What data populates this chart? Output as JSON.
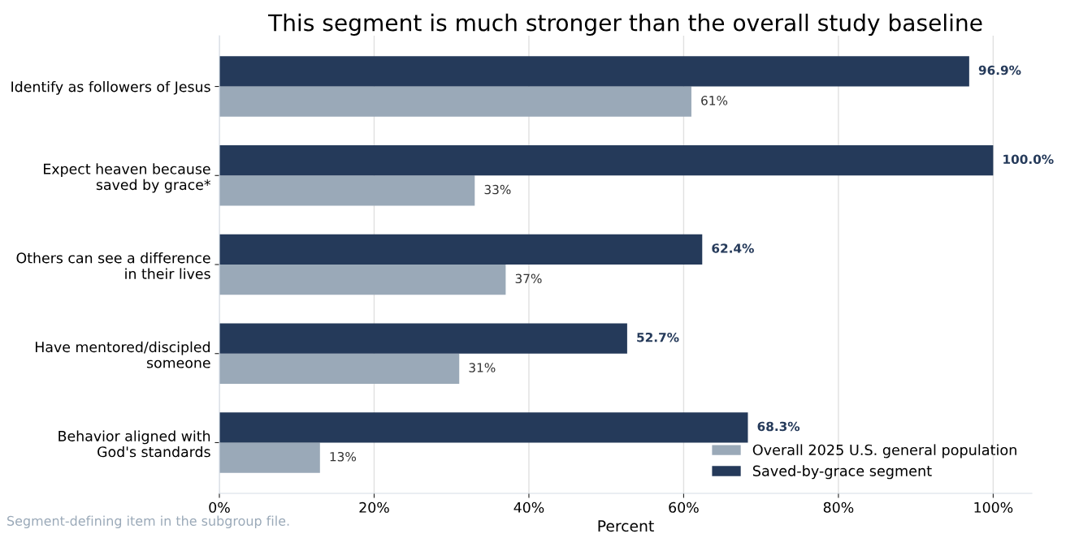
{
  "chart_data": {
    "type": "bar",
    "orientation": "horizontal",
    "title": "This segment is much stronger than the overall study baseline",
    "xlabel": "Percent",
    "categories": [
      "Identify as followers of Jesus",
      "Expect heaven because\nsaved by grace*",
      "Others can see a difference\nin their lives",
      "Have mentored/discipled\nsomeone",
      "Behavior aligned with\nGod's standards"
    ],
    "series": [
      {
        "name": "Overall 2025 U.S. general population",
        "color": "#9aa9b8",
        "values": [
          61,
          33,
          37,
          31,
          13
        ],
        "value_labels": [
          "61%",
          "33%",
          "37%",
          "31%",
          "13%"
        ]
      },
      {
        "name": "Saved-by-grace segment",
        "color": "#253a5a",
        "values": [
          96.9,
          100.0,
          62.4,
          52.7,
          68.3
        ],
        "value_labels": [
          "96.9%",
          "100.0%",
          "62.4%",
          "52.7%",
          "68.3%"
        ]
      }
    ],
    "xlim": [
      0,
      105
    ],
    "xticks": [
      {
        "value": 0,
        "label": "0%"
      },
      {
        "value": 20,
        "label": "20%"
      },
      {
        "value": 40,
        "label": "40%"
      },
      {
        "value": 60,
        "label": "60%"
      },
      {
        "value": 80,
        "label": "80%"
      },
      {
        "value": 100,
        "label": "100%"
      }
    ],
    "grid": "x",
    "legend": "bottom right",
    "annotations": [
      "Segment-defining item in the subgroup file."
    ]
  }
}
